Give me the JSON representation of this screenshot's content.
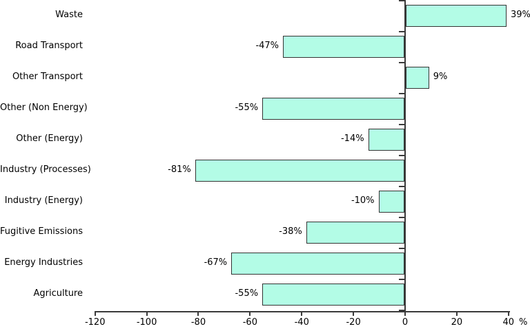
{
  "chart_data": {
    "type": "bar",
    "orientation": "horizontal",
    "title": "",
    "categories": [
      "Waste",
      "Road Transport",
      "Other Transport",
      "Other (Non Energy)",
      "Other (Energy)",
      "Industry (Processes)",
      "Industry (Energy)",
      "Fugitive Emissions",
      "Energy Industries",
      "Agriculture"
    ],
    "values": [
      39,
      -47,
      9,
      -55,
      -14,
      -81,
      -10,
      -38,
      -67,
      -55
    ],
    "value_labels": [
      "39%",
      "-47%",
      "9%",
      "-55%",
      "-14%",
      "-81%",
      "-10%",
      "-38%",
      "-67%",
      "-55%"
    ],
    "x_ticks": [
      -120,
      -100,
      -80,
      -60,
      -40,
      -20,
      0,
      20,
      40
    ],
    "x_tick_labels": [
      "-120",
      "-100",
      "-80",
      "-60",
      "-40",
      "-20",
      "0",
      "20",
      "40"
    ],
    "xlim": [
      -120,
      40
    ],
    "unit_label": "%",
    "legend": "none",
    "grid": "off",
    "colors": {
      "bar_fill": "#b3fce6",
      "bar_border": "#333333",
      "axis": "#3a3a3a",
      "text": "#000000"
    }
  }
}
